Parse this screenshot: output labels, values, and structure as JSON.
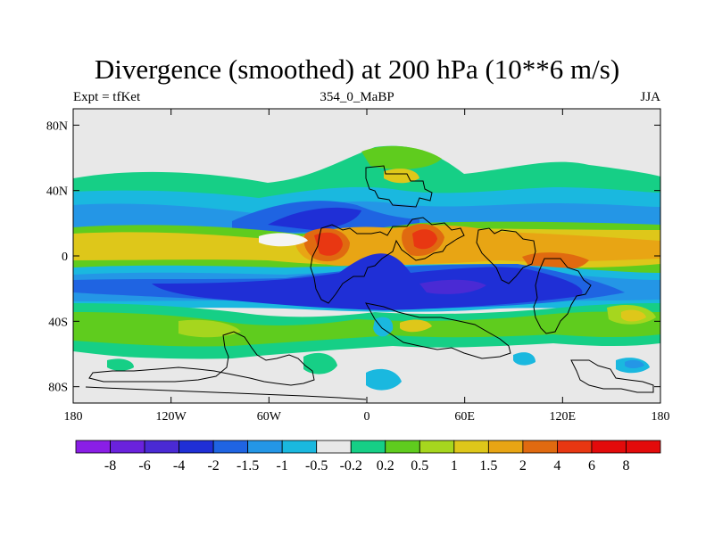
{
  "header": {
    "title": "Divergence (smoothed) at 200 hPa (10**6 m/s)",
    "left": "Expt = tfKet",
    "center": "354_0_MaBP",
    "right": "JJA"
  },
  "axes": {
    "y_ticks": [
      {
        "label": "80N",
        "lat": 80
      },
      {
        "label": "40N",
        "lat": 40
      },
      {
        "label": "0",
        "lat": 0
      },
      {
        "label": "40S",
        "lat": -40
      },
      {
        "label": "80S",
        "lat": -80
      }
    ],
    "x_ticks": [
      {
        "label": "180",
        "lon": -180
      },
      {
        "label": "120W",
        "lon": -120
      },
      {
        "label": "60W",
        "lon": -60
      },
      {
        "label": "0",
        "lon": 0
      },
      {
        "label": "60E",
        "lon": 60
      },
      {
        "label": "120E",
        "lon": 120
      },
      {
        "label": "180",
        "lon": 180
      }
    ],
    "lon_range": [
      -180,
      180
    ],
    "lat_range": [
      -90,
      90
    ]
  },
  "colorbar": {
    "colors": [
      "#8a1ee6",
      "#6a22dd",
      "#4a2ad4",
      "#1f2fd6",
      "#1f64e2",
      "#2496e6",
      "#1ab8df",
      "#e8e8e8",
      "#16cf86",
      "#5fcc1e",
      "#a6d61e",
      "#dec71a",
      "#e8a514",
      "#e06a10",
      "#e83712",
      "#e30b0b"
    ],
    "labels": [
      "-8",
      "-6",
      "-4",
      "-2",
      "-1.5",
      "-1",
      "-0.5",
      "-0.2",
      "0.2",
      "0.5",
      "1",
      "1.5",
      "2",
      "4",
      "6",
      "8"
    ]
  },
  "chart_data": {
    "type": "heatmap",
    "variable": "Divergence (smoothed) at 200 hPa",
    "units": "10**6 m/s",
    "levels": [
      -8,
      -6,
      -4,
      -2,
      -1.5,
      -1,
      -0.5,
      -0.2,
      0.2,
      0.5,
      1,
      1.5,
      2,
      4,
      6,
      8
    ],
    "x": {
      "name": "longitude",
      "range": [
        -180,
        180
      ]
    },
    "y": {
      "name": "latitude",
      "range": [
        -90,
        90
      ]
    },
    "bands": [
      {
        "lat": 45,
        "lon_range": [
          -180,
          180
        ],
        "value": 0.5
      },
      {
        "lat": 30,
        "lon_range": [
          -180,
          180
        ],
        "value": -1
      },
      {
        "lat": 22,
        "lon_range": [
          -180,
          180
        ],
        "value": -2
      },
      {
        "lat": 10,
        "lon_range": [
          -180,
          180
        ],
        "value": 2
      },
      {
        "lat": 0,
        "lon_range": [
          -180,
          180
        ],
        "value": 1
      },
      {
        "lat": -15,
        "lon_range": [
          -180,
          180
        ],
        "value": -1
      },
      {
        "lat": -25,
        "lon_range": [
          -100,
          100
        ],
        "value": -2
      },
      {
        "lat": -40,
        "lon_range": [
          -180,
          180
        ],
        "value": 0.5
      }
    ],
    "maxima": [
      {
        "lon": -22,
        "lat": 8,
        "value": 8
      },
      {
        "lon": 33,
        "lat": 10,
        "value": 6
      },
      {
        "lon": 110,
        "lat": -5,
        "value": 6
      },
      {
        "lon": 165,
        "lat": -30,
        "value": 1.5
      }
    ],
    "minima": [
      {
        "lon": 20,
        "lat": -25,
        "value": -4
      },
      {
        "lon": -60,
        "lat": 25,
        "value": -2
      }
    ]
  }
}
